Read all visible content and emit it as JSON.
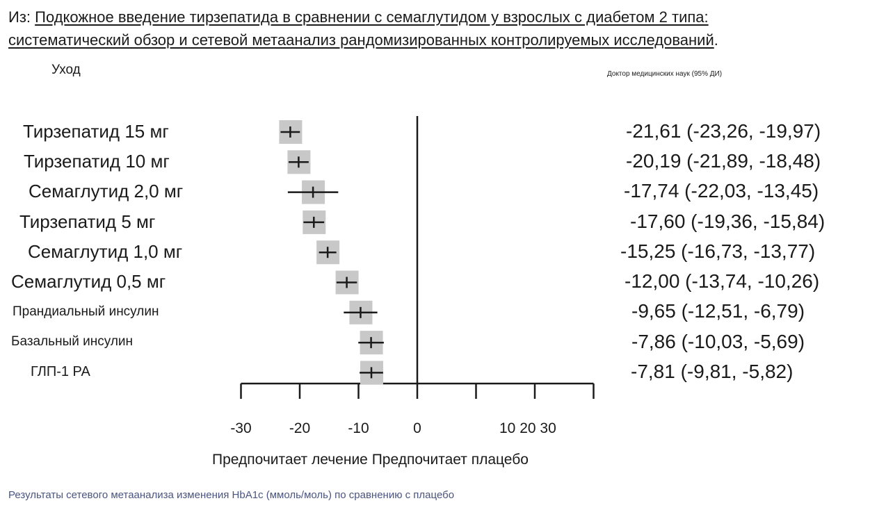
{
  "header": {
    "prefix": "Из: ",
    "title_line1": "Подкожное введение тирзепатида в сравнении с семаглутидом у взрослых с диабетом 2 типа:",
    "title_line2": "систематический обзор и сетевой метаанализ рандомизированных контролируемых исследований",
    "title_end": "."
  },
  "caption": "Результаты сетевого метаанализа изменения HbA1c (ммоль/моль) по сравнению с плацебо",
  "chart_data": {
    "type": "forest",
    "column_header_left": "Уход",
    "column_header_right": "Доктор медицинских наук (95% ДИ)",
    "xlabel": "Предпочитает лечение Предпочитает плацебо",
    "xlim": [
      -30,
      30
    ],
    "x_ticks": [
      -30,
      -20,
      -10,
      0,
      10,
      20,
      30
    ],
    "x_tick_labels_left": [
      "-30",
      "-20",
      "-10",
      "0"
    ],
    "x_tick_labels_right": "10 20 30",
    "reference_line": 0,
    "marker_color": "#c8c8c8",
    "rows": [
      {
        "treatment": "Тирзепатид 15 мг",
        "md": -21.61,
        "lower": -23.26,
        "upper": -19.97,
        "text": "-21,61 (-23,26, -19,97)"
      },
      {
        "treatment": "Тирзепатид 10 мг",
        "md": -20.19,
        "lower": -21.89,
        "upper": -18.48,
        "text": "-20,19 (-21,89, -18,48)"
      },
      {
        "treatment": "Семаглутид 2,0 мг",
        "md": -17.74,
        "lower": -22.03,
        "upper": -13.45,
        "text": "-17,74 (-22,03, -13,45)"
      },
      {
        "treatment": "Тирзепатид 5 мг",
        "md": -17.6,
        "lower": -19.36,
        "upper": -15.84,
        "text": "-17,60 (-19,36, -15,84)"
      },
      {
        "treatment": "Семаглутид 1,0 мг",
        "md": -15.25,
        "lower": -16.73,
        "upper": -13.77,
        "text": "-15,25 (-16,73, -13,77)"
      },
      {
        "treatment": "Семаглутид 0,5 мг",
        "md": -12.0,
        "lower": -13.74,
        "upper": -10.26,
        "text": "-12,00 (-13,74, -10,26)"
      },
      {
        "treatment": "Прандиальный инсулин",
        "md": -9.65,
        "lower": -12.51,
        "upper": -6.79,
        "text": "-9,65 (-12,51, -6,79)"
      },
      {
        "treatment": "Базальный инсулин",
        "md": -7.86,
        "lower": -10.03,
        "upper": -5.69,
        "text": "-7,86 (-10,03, -5,69)"
      },
      {
        "treatment": "ГЛП-1 РА",
        "md": -7.81,
        "lower": -9.81,
        "upper": -5.82,
        "text": "-7,81 (-9,81, -5,82)"
      }
    ]
  }
}
